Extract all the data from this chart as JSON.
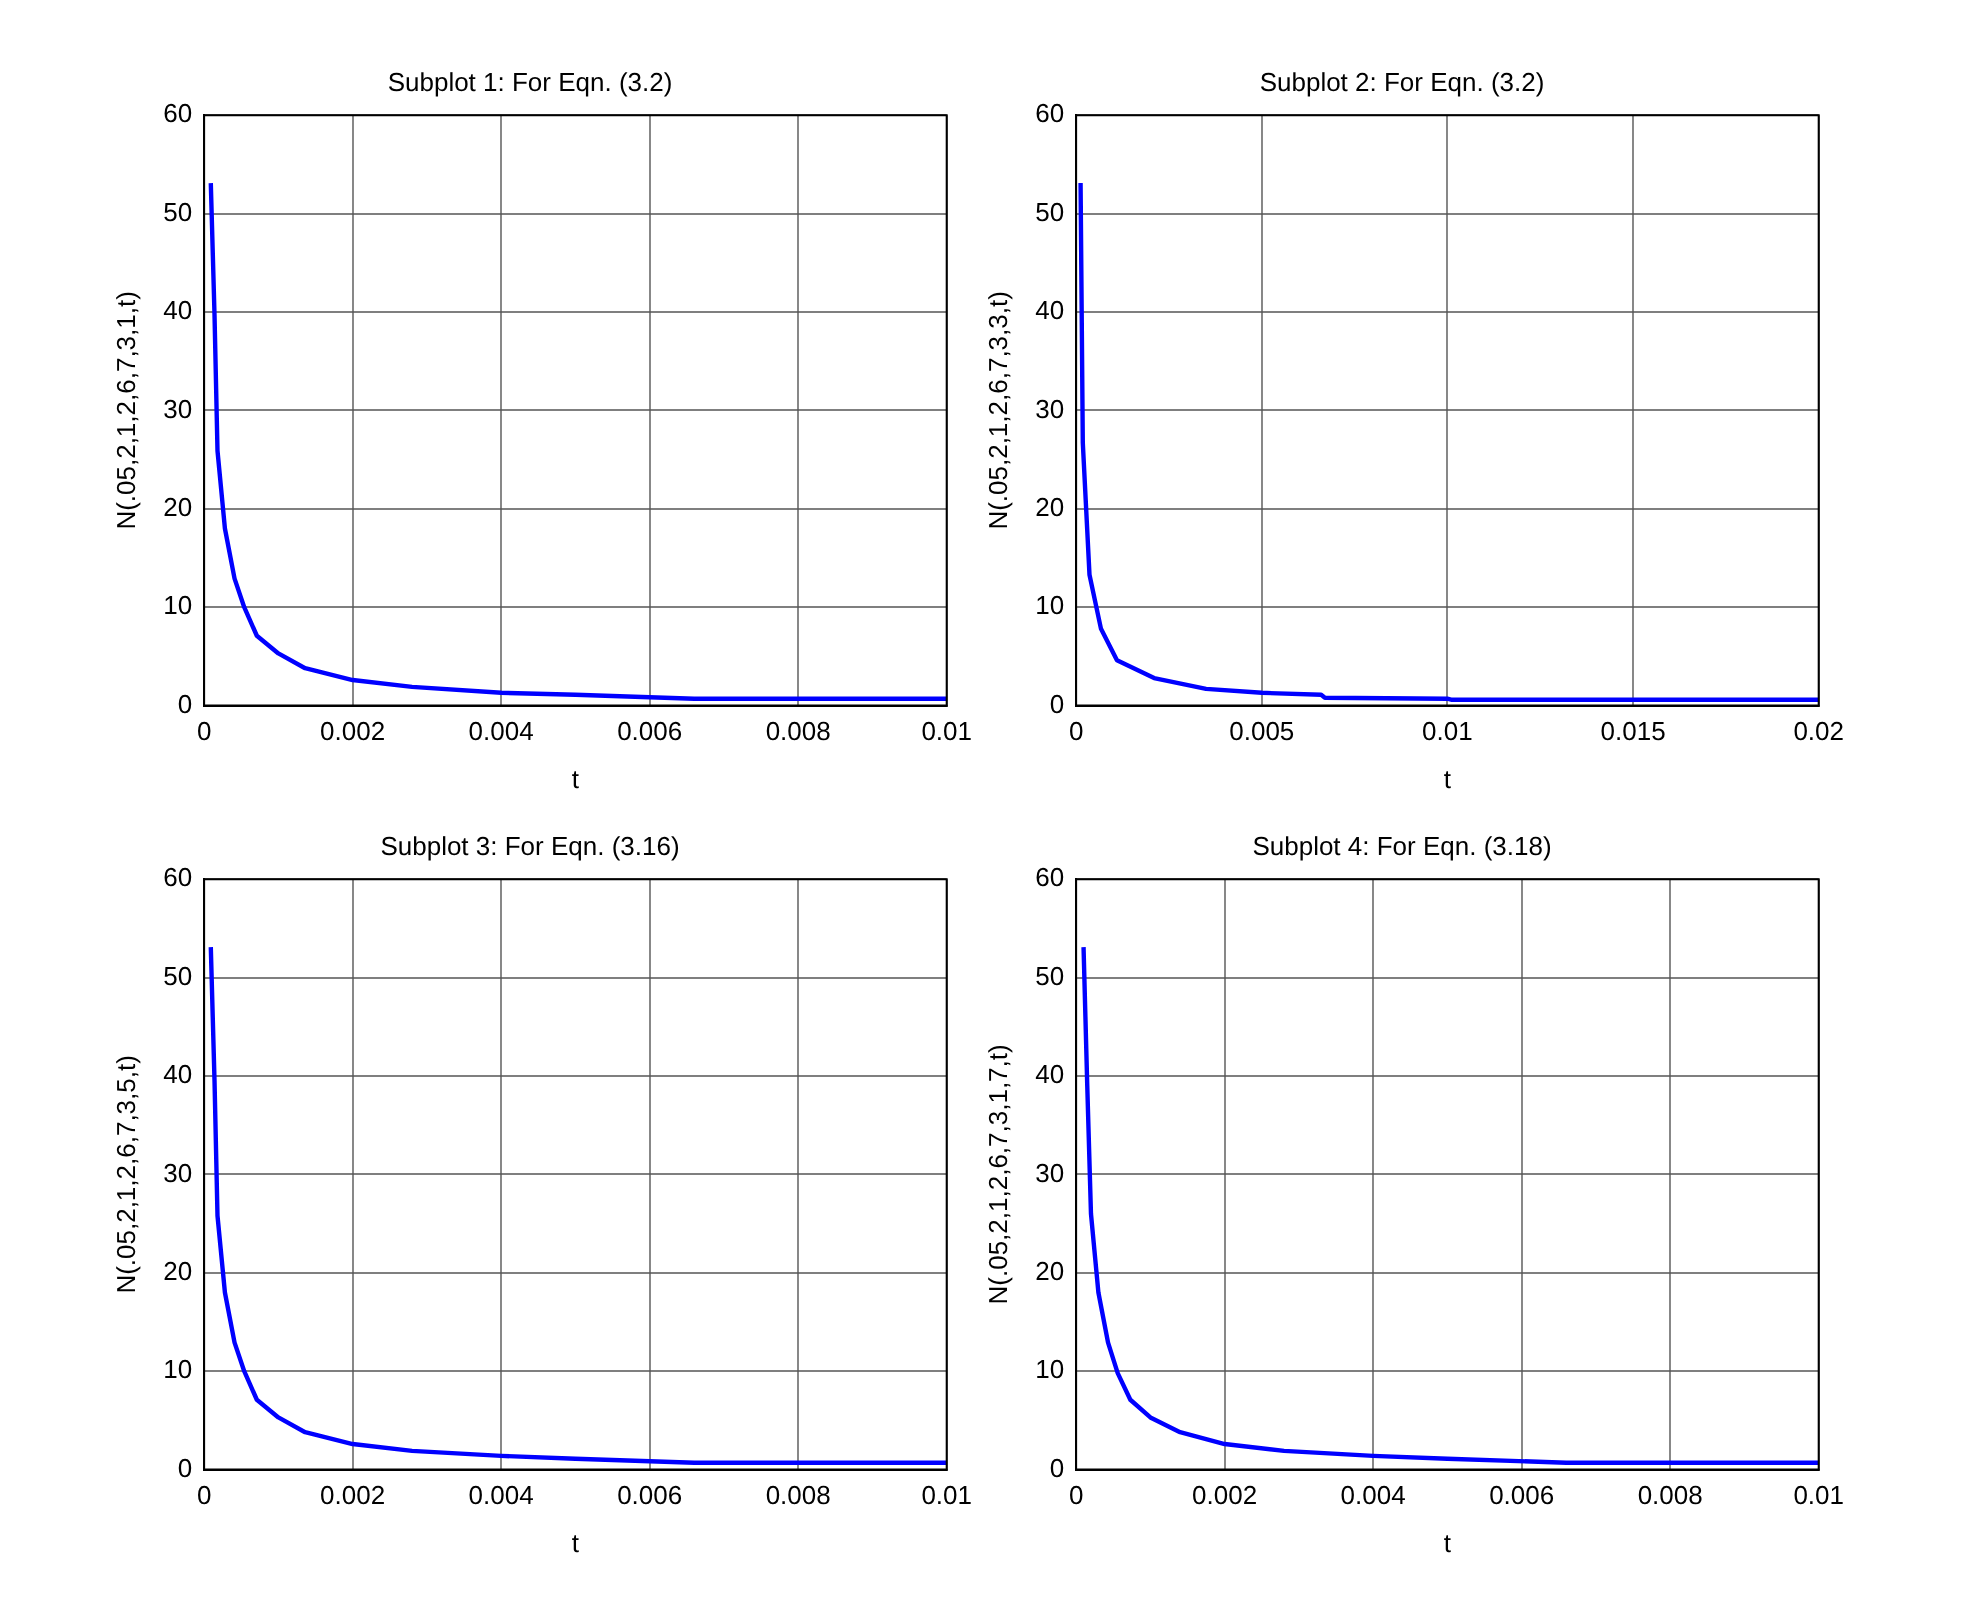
{
  "chart_data": [
    {
      "type": "line",
      "title": "Subplot 1: For Eqn. (3.2)",
      "xlabel": "t",
      "ylabel": "N(.05,2,1,2,6,7,3,1,t)",
      "grid": true,
      "marker": "none",
      "line_style": "solid",
      "legend": false,
      "xlim": [
        0,
        0.01
      ],
      "xticks": [
        0,
        0.002,
        0.004,
        0.006,
        0.008,
        0.01
      ],
      "ylim": [
        0,
        60
      ],
      "yticks": [
        0,
        10,
        20,
        30,
        40,
        50,
        60
      ],
      "series": [
        {
          "color": "#0000ff",
          "x": [
            9e-05,
            0.00014,
            0.00018,
            0.00028,
            0.00041,
            0.00054,
            0.00071,
            0.001,
            0.00136,
            0.002,
            0.0028,
            0.004,
            0.005,
            0.0066,
            0.01
          ],
          "values": [
            53.1,
            39.7,
            25.9,
            18,
            12.9,
            10,
            7.1,
            5.3,
            3.8,
            2.6,
            1.9,
            1.3,
            1.1,
            0.7,
            0.7
          ]
        }
      ]
    },
    {
      "type": "line",
      "title": "Subplot 2: For Eqn. (3.2)",
      "xlabel": "t",
      "ylabel": "N(.05,2,1,2,6,7,3,3,t)",
      "grid": true,
      "marker": "none",
      "line_style": "solid",
      "legend": false,
      "xlim": [
        0,
        0.02
      ],
      "xticks": [
        0,
        0.005,
        0.01,
        0.015,
        0.02
      ],
      "ylim": [
        0,
        60
      ],
      "yticks": [
        0,
        10,
        20,
        30,
        40,
        50,
        60
      ],
      "series": [
        {
          "color": "#0000ff",
          "x": [
            0.00012,
            0.00018,
            0.00036,
            0.00067,
            0.0011,
            0.0021,
            0.0035,
            0.005,
            0.0066,
            0.0067,
            0.01,
            0.0101,
            0.02
          ],
          "values": [
            53.1,
            26.7,
            13.3,
            7.8,
            4.6,
            2.8,
            1.7,
            1.3,
            1.1,
            0.8,
            0.7,
            0.6,
            0.6
          ]
        }
      ]
    },
    {
      "type": "line",
      "title": "Subplot 3: For Eqn. (3.16)",
      "xlabel": "t",
      "ylabel": "N(.05,2,1,2,6,7,3,5,t)",
      "grid": true,
      "marker": "none",
      "line_style": "solid",
      "legend": false,
      "xlim": [
        0,
        0.01
      ],
      "xticks": [
        0,
        0.002,
        0.004,
        0.006,
        0.008,
        0.01
      ],
      "ylim": [
        0,
        60
      ],
      "yticks": [
        0,
        10,
        20,
        30,
        40,
        50,
        60
      ],
      "series": [
        {
          "color": "#0000ff",
          "x": [
            9e-05,
            0.00014,
            0.00018,
            0.00028,
            0.00041,
            0.00054,
            0.00071,
            0.001,
            0.00136,
            0.002,
            0.0028,
            0.004,
            0.005,
            0.0066,
            0.01
          ],
          "values": [
            53.1,
            39.5,
            25.8,
            18,
            12.9,
            10,
            7.1,
            5.3,
            3.8,
            2.6,
            1.9,
            1.4,
            1.1,
            0.7,
            0.7
          ]
        }
      ]
    },
    {
      "type": "line",
      "title": "Subplot 4: For Eqn. (3.18)",
      "xlabel": "t",
      "ylabel": "N(.05,2,1,2,6,7,3,1,7,t)",
      "grid": true,
      "marker": "none",
      "line_style": "solid",
      "legend": false,
      "xlim": [
        0,
        0.01
      ],
      "xticks": [
        0,
        0.002,
        0.004,
        0.006,
        0.008,
        0.01
      ],
      "ylim": [
        0,
        60
      ],
      "yticks": [
        0,
        10,
        20,
        30,
        40,
        50,
        60
      ],
      "series": [
        {
          "color": "#0000ff",
          "x": [
            0.0001,
            0.00015,
            0.0002,
            0.0003,
            0.00043,
            0.00056,
            0.00073,
            0.001,
            0.0014,
            0.002,
            0.0028,
            0.004,
            0.005,
            0.0066,
            0.01
          ],
          "values": [
            53.1,
            39,
            26,
            18,
            12.9,
            9.8,
            7.1,
            5.3,
            3.8,
            2.6,
            1.9,
            1.4,
            1.1,
            0.7,
            0.7
          ]
        }
      ]
    }
  ]
}
